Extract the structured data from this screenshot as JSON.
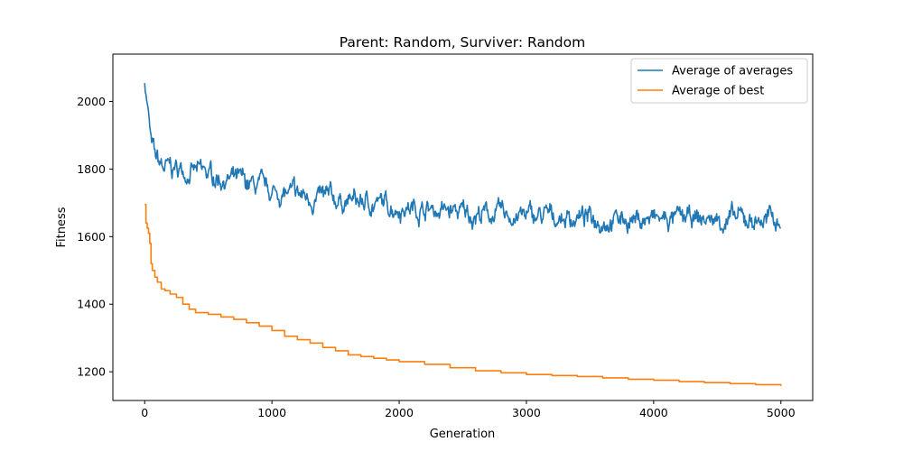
{
  "chart_data": {
    "type": "line",
    "title": "Parent: Random, Surviver: Random",
    "xlabel": "Generation",
    "ylabel": "Fitness",
    "xlim": [
      -250,
      5250
    ],
    "ylim": [
      1115,
      2140
    ],
    "xticks": [
      0,
      1000,
      2000,
      3000,
      4000,
      5000
    ],
    "yticks": [
      1200,
      1400,
      1600,
      1800,
      2000
    ],
    "grid": false,
    "legend": "top-right",
    "series": [
      {
        "name": "Average of averages",
        "color": "#1f77b4",
        "kind": "noisy",
        "trend_x": [
          0,
          15,
          30,
          50,
          80,
          150,
          250,
          400,
          600,
          800,
          1000,
          1300,
          1600,
          2000,
          2500,
          3000,
          3500,
          4000,
          4500,
          5000
        ],
        "trend_y": [
          2060,
          2010,
          1965,
          1880,
          1830,
          1800,
          1800,
          1790,
          1775,
          1755,
          1730,
          1715,
          1705,
          1690,
          1670,
          1660,
          1655,
          1650,
          1650,
          1650
        ],
        "amplitude": 40
      },
      {
        "name": "Average of best",
        "color": "#ff7f0e",
        "kind": "step",
        "x": [
          0,
          10,
          20,
          30,
          40,
          50,
          60,
          80,
          100,
          130,
          160,
          200,
          250,
          300,
          350,
          400,
          500,
          600,
          700,
          800,
          900,
          1000,
          1100,
          1200,
          1300,
          1400,
          1500,
          1600,
          1700,
          1800,
          1900,
          2000,
          2200,
          2400,
          2600,
          2800,
          3000,
          3200,
          3400,
          3600,
          3800,
          4000,
          4200,
          4400,
          4600,
          4800,
          5000
        ],
        "y": [
          1695,
          1640,
          1625,
          1610,
          1580,
          1520,
          1500,
          1480,
          1465,
          1445,
          1440,
          1430,
          1420,
          1400,
          1385,
          1375,
          1370,
          1362,
          1355,
          1345,
          1335,
          1322,
          1305,
          1295,
          1285,
          1272,
          1262,
          1250,
          1245,
          1240,
          1235,
          1230,
          1222,
          1212,
          1203,
          1197,
          1192,
          1189,
          1186,
          1182,
          1178,
          1175,
          1171,
          1168,
          1165,
          1162,
          1158
        ]
      }
    ]
  }
}
